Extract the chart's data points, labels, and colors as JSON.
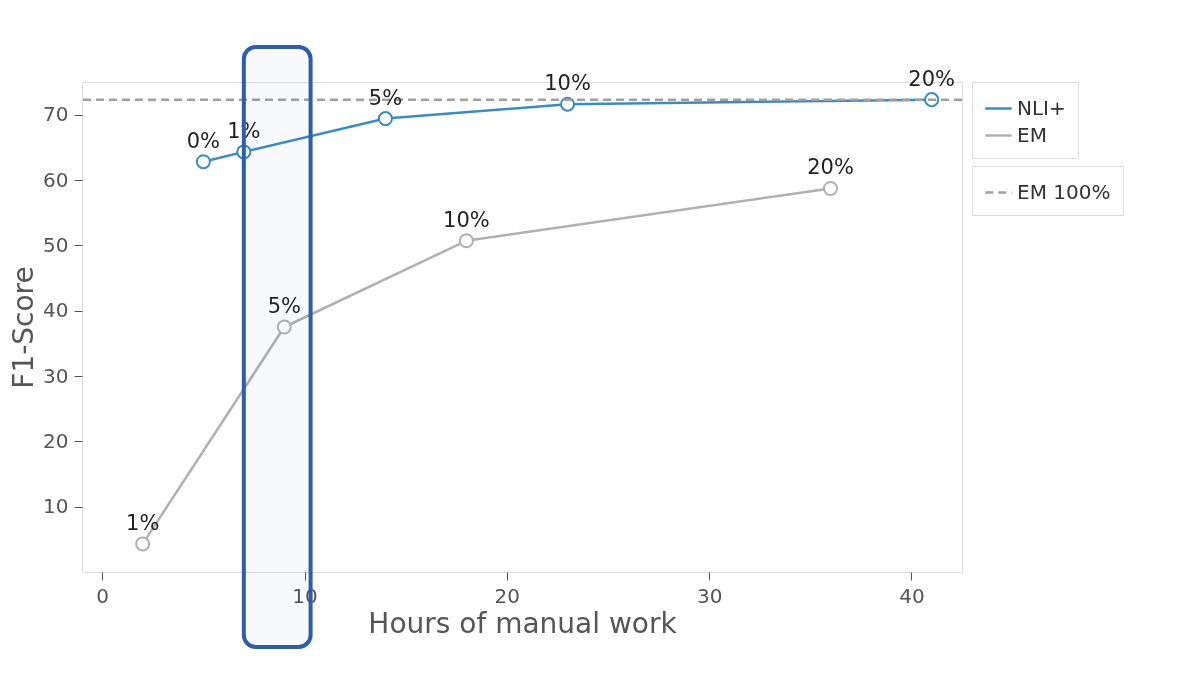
{
  "chart_data": {
    "type": "line",
    "xlabel": "Hours of manual work",
    "ylabel": "F1-Score",
    "xlim": [
      -1,
      42.5
    ],
    "ylim": [
      0,
      75
    ],
    "xticks": [
      0,
      10,
      20,
      30,
      40
    ],
    "yticks": [
      10,
      20,
      30,
      40,
      50,
      60,
      70
    ],
    "grid": false,
    "legend": "right",
    "marker": "circle",
    "line_style": "solid",
    "series": [
      {
        "name": "NLI+",
        "color": "#3b8bc2",
        "x": [
          5,
          7,
          14,
          23,
          41
        ],
        "values": [
          62.8,
          64.3,
          69.4,
          71.6,
          72.3
        ]
      },
      {
        "name": "EM",
        "color": "#b0b0b0",
        "x": [
          2,
          9,
          18,
          36
        ],
        "values": [
          4.3,
          37.5,
          50.7,
          58.7
        ]
      }
    ],
    "annotations": [
      {
        "text": "0%",
        "x": 5,
        "y": 62.8
      },
      {
        "text": "1%",
        "x": 7,
        "y": 64.3
      },
      {
        "text": "5%",
        "x": 14,
        "y": 69.4
      },
      {
        "text": "10%",
        "x": 23,
        "y": 71.6
      },
      {
        "text": "20%",
        "x": 41,
        "y": 72.3
      },
      {
        "text": "1%",
        "x": 2,
        "y": 4.3
      },
      {
        "text": "5%",
        "x": 9,
        "y": 37.5
      },
      {
        "text": "10%",
        "x": 18,
        "y": 50.7
      },
      {
        "text": "20%",
        "x": 36,
        "y": 58.7
      }
    ],
    "ref_lines": [
      {
        "axis": "y",
        "value": 72.3,
        "label": "EM 100%",
        "color": "#a0a0a0",
        "line_style": "dashed"
      }
    ],
    "bands": [
      {
        "axis": "x",
        "from": 7,
        "to": 10.3,
        "color": "#2f5ea8"
      }
    ]
  }
}
